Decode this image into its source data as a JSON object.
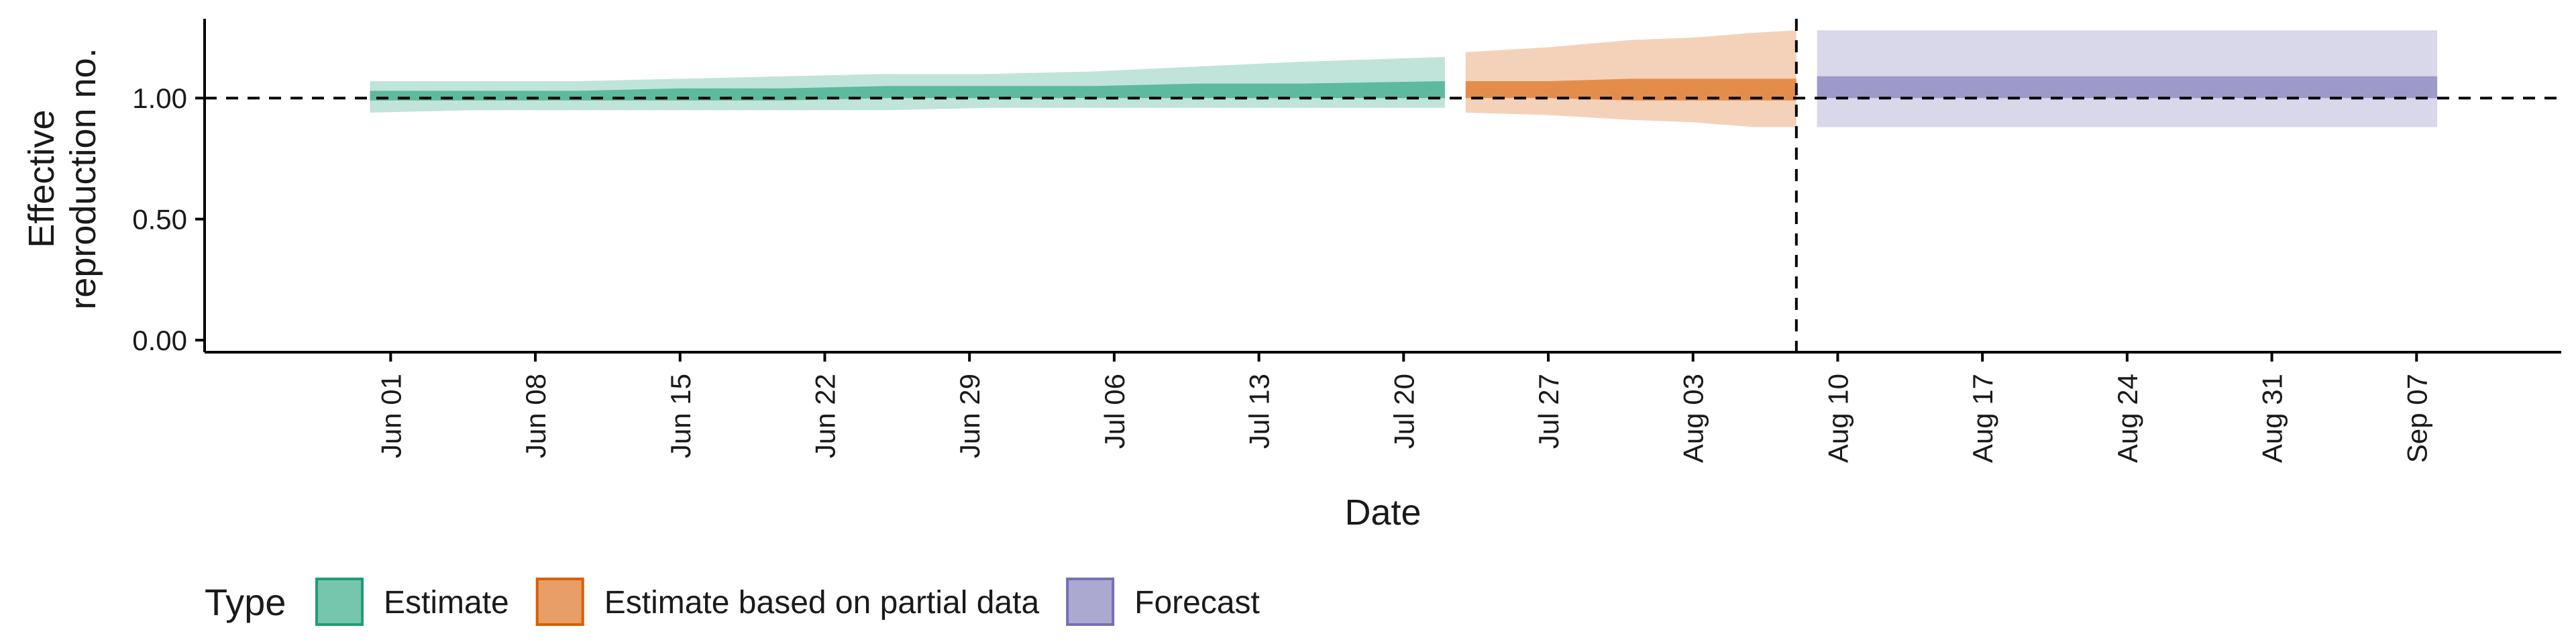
{
  "chart_data": {
    "type": "area",
    "title": "",
    "xlabel": "Date",
    "ylabel": "Effective\nreproduction no.",
    "ylim": [
      0,
      1.3
    ],
    "xlim": [
      "2021-05-23",
      "2021-09-14"
    ],
    "y_ticks": [
      0.0,
      0.5,
      1.0
    ],
    "y_tick_labels": [
      "0.00",
      "0.50",
      "1.00"
    ],
    "x_ticks": [
      "2021-06-01",
      "2021-06-08",
      "2021-06-15",
      "2021-06-22",
      "2021-06-29",
      "2021-07-06",
      "2021-07-13",
      "2021-07-20",
      "2021-07-27",
      "2021-08-03",
      "2021-08-10",
      "2021-08-17",
      "2021-08-24",
      "2021-08-31",
      "2021-09-07"
    ],
    "x_tick_labels": [
      "Jun 01",
      "Jun 08",
      "Jun 15",
      "Jun 22",
      "Jun 29",
      "Jul 06",
      "Jul 13",
      "Jul 20",
      "Jul 27",
      "Aug 03",
      "Aug 10",
      "Aug 17",
      "Aug 24",
      "Aug 31",
      "Sep 07"
    ],
    "reference_line_y": 1.0,
    "reference_line_date": "2021-08-08",
    "grid": false,
    "legend": {
      "title": "Type",
      "position": "bottom-left"
    },
    "colors": {
      "Estimate": "#1b9e77",
      "Estimate based on partial data": "#d95f02",
      "Forecast": "#7570b3"
    },
    "series": [
      {
        "name": "Estimate",
        "x": [
          "2021-05-31",
          "2021-06-05",
          "2021-06-10",
          "2021-06-15",
          "2021-06-20",
          "2021-06-25",
          "2021-06-30",
          "2021-07-05",
          "2021-07-10",
          "2021-07-15",
          "2021-07-22"
        ],
        "lower_90": [
          0.94,
          0.95,
          0.95,
          0.95,
          0.95,
          0.95,
          0.96,
          0.96,
          0.96,
          0.96,
          0.96
        ],
        "upper_90": [
          1.07,
          1.07,
          1.07,
          1.08,
          1.09,
          1.1,
          1.1,
          1.11,
          1.13,
          1.15,
          1.17
        ],
        "lower_50": [
          0.99,
          0.99,
          0.99,
          0.99,
          0.99,
          1.0,
          1.0,
          1.0,
          1.0,
          1.0,
          1.0
        ],
        "upper_50": [
          1.03,
          1.03,
          1.03,
          1.04,
          1.04,
          1.05,
          1.05,
          1.05,
          1.06,
          1.06,
          1.07
        ]
      },
      {
        "name": "Estimate based on partial data",
        "x": [
          "2021-07-23",
          "2021-07-27",
          "2021-07-31",
          "2021-08-03",
          "2021-08-06",
          "2021-08-08"
        ],
        "lower_90": [
          0.94,
          0.93,
          0.91,
          0.9,
          0.88,
          0.88
        ],
        "upper_90": [
          1.19,
          1.21,
          1.24,
          1.25,
          1.27,
          1.28
        ],
        "lower_50": [
          1.0,
          1.0,
          0.99,
          0.99,
          0.99,
          0.99
        ],
        "upper_50": [
          1.07,
          1.07,
          1.08,
          1.08,
          1.08,
          1.08
        ]
      },
      {
        "name": "Forecast",
        "x": [
          "2021-08-09",
          "2021-09-08"
        ],
        "lower_90": [
          0.88,
          0.88
        ],
        "upper_90": [
          1.28,
          1.28
        ],
        "lower_50": [
          1.0,
          1.0
        ],
        "upper_50": [
          1.09,
          1.09
        ]
      }
    ]
  }
}
